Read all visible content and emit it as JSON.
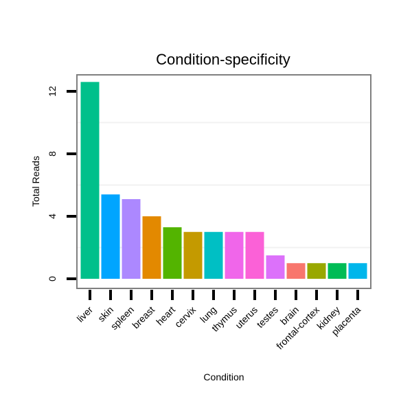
{
  "chart_data": {
    "type": "bar",
    "title": "Condition-specificity",
    "xlabel": "Condition",
    "ylabel": "Total Reads",
    "ylim": [
      -0.5,
      13
    ],
    "yticks": [
      0,
      4,
      8,
      12
    ],
    "categories": [
      "liver",
      "skin",
      "spleen",
      "breast",
      "heart",
      "cervix",
      "lung",
      "thymus",
      "uterus",
      "testes",
      "brain",
      "frontal-cortex",
      "kidney",
      "placenta"
    ],
    "values": [
      12.6,
      5.4,
      5.1,
      4.0,
      3.3,
      3.0,
      3.0,
      3.0,
      3.0,
      1.5,
      1.0,
      1.0,
      1.0,
      1.0
    ],
    "colors": [
      "#00C08B",
      "#00A5FF",
      "#AC88FF",
      "#E38900",
      "#53B400",
      "#C49A00",
      "#00BFC4",
      "#F066EA",
      "#FB61D7",
      "#DC71FA",
      "#F8766D",
      "#99A800",
      "#00BC56",
      "#00B6EB"
    ],
    "grid": true,
    "legend": "none"
  }
}
